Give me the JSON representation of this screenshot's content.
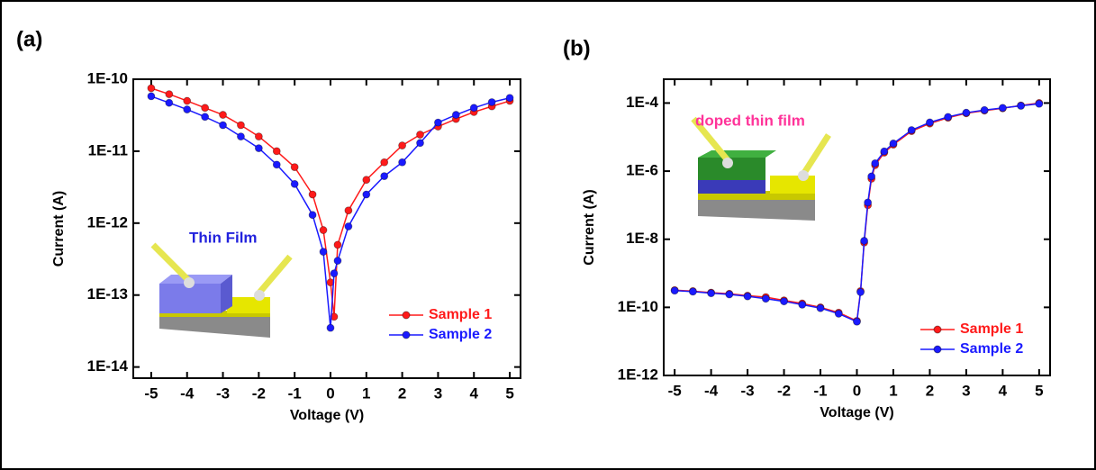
{
  "chart_data": [
    {
      "type": "line",
      "label": "(a)",
      "annotation": "Thin Film",
      "xlabel": "Voltage (V)",
      "ylabel": "Current (A)",
      "log_y": true,
      "legend": "lower right",
      "xlim": [
        -5.5,
        5.3
      ],
      "xticks": [
        -5,
        -4,
        -3,
        -2,
        -1,
        0,
        1,
        2,
        3,
        4,
        5
      ],
      "ylim": [
        7e-15,
        1e-10
      ],
      "yticks": [
        {
          "value": 1e-14,
          "label": "1E-14"
        },
        {
          "value": 1e-13,
          "label": "1E-13"
        },
        {
          "value": 1e-12,
          "label": "1E-12"
        },
        {
          "value": 1e-11,
          "label": "1E-11"
        },
        {
          "value": 1e-10,
          "label": "1E-10"
        }
      ],
      "x": [
        -5,
        -4.5,
        -4,
        -3.5,
        -3,
        -2.5,
        -2,
        -1.5,
        -1,
        -0.5,
        -0.2,
        0,
        0.1,
        0.2,
        0.5,
        1,
        1.5,
        2,
        2.5,
        3,
        3.5,
        4,
        4.5,
        5
      ],
      "series": [
        {
          "name": "Sample 1",
          "color": "#ff1a1a",
          "values": [
            7.5e-11,
            6.2e-11,
            5e-11,
            4e-11,
            3.2e-11,
            2.3e-11,
            1.6e-11,
            1e-11,
            6e-12,
            2.5e-12,
            8e-13,
            1.5e-13,
            5e-14,
            5e-13,
            1.5e-12,
            4e-12,
            7e-12,
            1.2e-11,
            1.7e-11,
            2.2e-11,
            2.8e-11,
            3.5e-11,
            4.2e-11,
            5e-11
          ]
        },
        {
          "name": "Sample 2",
          "color": "#1a1aff",
          "values": [
            5.8e-11,
            4.7e-11,
            3.8e-11,
            3e-11,
            2.3e-11,
            1.6e-11,
            1.1e-11,
            6.5e-12,
            3.5e-12,
            1.3e-12,
            4e-13,
            3.5e-14,
            2e-13,
            3e-13,
            9e-13,
            2.5e-12,
            4.5e-12,
            7e-12,
            1.3e-11,
            2.5e-11,
            3.2e-11,
            4e-11,
            4.8e-11,
            5.5e-11
          ]
        }
      ]
    },
    {
      "type": "line",
      "label": "(b)",
      "annotation": "doped thin film",
      "xlabel": "Voltage (V)",
      "ylabel": "Current (A)",
      "log_y": true,
      "legend": "lower right",
      "xlim": [
        -5.3,
        5.3
      ],
      "xticks": [
        -5,
        -4,
        -3,
        -2,
        -1,
        0,
        1,
        2,
        3,
        4,
        5
      ],
      "ylim": [
        1e-12,
        0.0005
      ],
      "yticks": [
        {
          "value": 1e-12,
          "label": "1E-12"
        },
        {
          "value": 1e-10,
          "label": "1E-10"
        },
        {
          "value": 1e-08,
          "label": "1E-8"
        },
        {
          "value": 1e-06,
          "label": "1E-6"
        },
        {
          "value": 0.0001,
          "label": "1E-4"
        }
      ],
      "x": [
        -5,
        -4.5,
        -4,
        -3.5,
        -3,
        -2.5,
        -2,
        -1.5,
        -1,
        -0.5,
        0,
        0.1,
        0.2,
        0.3,
        0.4,
        0.5,
        0.75,
        1,
        1.5,
        2,
        2.5,
        3,
        3.5,
        4,
        4.5,
        5
      ],
      "series": [
        {
          "name": "Sample 1",
          "color": "#ff1a1a",
          "values": [
            3.2e-10,
            3e-10,
            2.7e-10,
            2.5e-10,
            2.2e-10,
            2e-10,
            1.6e-10,
            1.3e-10,
            1e-10,
            7e-11,
            4e-11,
            3e-10,
            8e-09,
            1e-07,
            6e-07,
            1.5e-06,
            3.5e-06,
            6e-06,
            1.5e-05,
            2.5e-05,
            3.7e-05,
            5e-05,
            6e-05,
            7e-05,
            8.5e-05,
            0.0001
          ]
        },
        {
          "name": "Sample 2",
          "color": "#1a1aff",
          "values": [
            3.1e-10,
            2.9e-10,
            2.6e-10,
            2.4e-10,
            2.1e-10,
            1.8e-10,
            1.5e-10,
            1.2e-10,
            9.5e-11,
            6.5e-11,
            3.8e-11,
            2.8e-10,
            9e-09,
            1.2e-07,
            7e-07,
            1.7e-06,
            3.8e-06,
            6.5e-06,
            1.6e-05,
            2.7e-05,
            3.9e-05,
            5.2e-05,
            6.2e-05,
            7.2e-05,
            8.3e-05,
            9.5e-05
          ]
        }
      ]
    }
  ]
}
